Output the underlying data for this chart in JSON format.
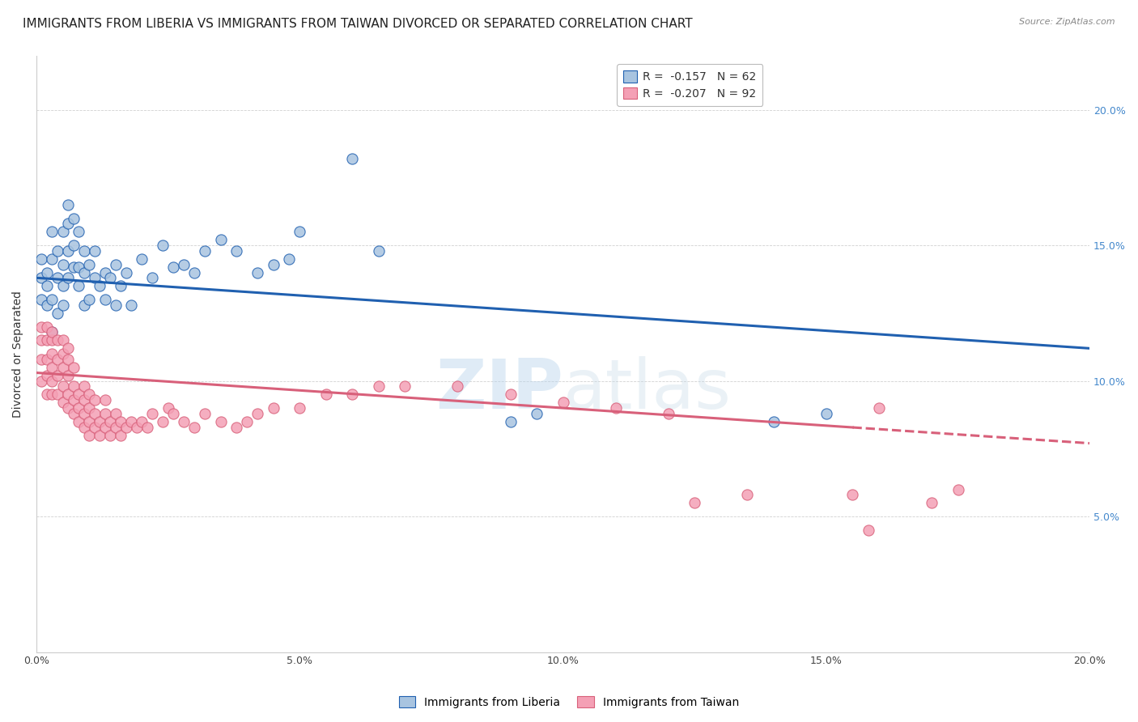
{
  "title": "IMMIGRANTS FROM LIBERIA VS IMMIGRANTS FROM TAIWAN DIVORCED OR SEPARATED CORRELATION CHART",
  "source": "Source: ZipAtlas.com",
  "ylabel": "Divorced or Separated",
  "legend_liberia": "Immigrants from Liberia",
  "legend_taiwan": "Immigrants from Taiwan",
  "r_liberia": -0.157,
  "n_liberia": 62,
  "r_taiwan": -0.207,
  "n_taiwan": 92,
  "xmin": 0.0,
  "xmax": 0.2,
  "ymin": 0.0,
  "ymax": 0.22,
  "color_liberia": "#a8c4e0",
  "color_taiwan": "#f4a0b5",
  "color_line_liberia": "#2060b0",
  "color_line_taiwan": "#d8607a",
  "watermark_zip": "ZIP",
  "watermark_atlas": "atlas",
  "title_fontsize": 11,
  "axis_label_fontsize": 10,
  "tick_fontsize": 9,
  "legend_fontsize": 10,
  "liberia_x": [
    0.001,
    0.001,
    0.001,
    0.002,
    0.002,
    0.002,
    0.003,
    0.003,
    0.003,
    0.003,
    0.004,
    0.004,
    0.004,
    0.005,
    0.005,
    0.005,
    0.005,
    0.006,
    0.006,
    0.006,
    0.006,
    0.007,
    0.007,
    0.007,
    0.008,
    0.008,
    0.008,
    0.009,
    0.009,
    0.009,
    0.01,
    0.01,
    0.011,
    0.011,
    0.012,
    0.013,
    0.013,
    0.014,
    0.015,
    0.015,
    0.016,
    0.017,
    0.018,
    0.02,
    0.022,
    0.024,
    0.026,
    0.028,
    0.03,
    0.032,
    0.035,
    0.038,
    0.042,
    0.045,
    0.048,
    0.05,
    0.06,
    0.065,
    0.09,
    0.095,
    0.14,
    0.15
  ],
  "liberia_y": [
    0.13,
    0.138,
    0.145,
    0.128,
    0.135,
    0.14,
    0.118,
    0.13,
    0.145,
    0.155,
    0.125,
    0.138,
    0.148,
    0.128,
    0.135,
    0.143,
    0.155,
    0.138,
    0.148,
    0.158,
    0.165,
    0.142,
    0.15,
    0.16,
    0.135,
    0.142,
    0.155,
    0.128,
    0.14,
    0.148,
    0.13,
    0.143,
    0.138,
    0.148,
    0.135,
    0.14,
    0.13,
    0.138,
    0.128,
    0.143,
    0.135,
    0.14,
    0.128,
    0.145,
    0.138,
    0.15,
    0.142,
    0.143,
    0.14,
    0.148,
    0.152,
    0.148,
    0.14,
    0.143,
    0.145,
    0.155,
    0.182,
    0.148,
    0.085,
    0.088,
    0.085,
    0.088
  ],
  "taiwan_x": [
    0.001,
    0.001,
    0.001,
    0.001,
    0.002,
    0.002,
    0.002,
    0.002,
    0.002,
    0.003,
    0.003,
    0.003,
    0.003,
    0.003,
    0.003,
    0.004,
    0.004,
    0.004,
    0.004,
    0.005,
    0.005,
    0.005,
    0.005,
    0.005,
    0.006,
    0.006,
    0.006,
    0.006,
    0.006,
    0.007,
    0.007,
    0.007,
    0.007,
    0.008,
    0.008,
    0.008,
    0.009,
    0.009,
    0.009,
    0.009,
    0.01,
    0.01,
    0.01,
    0.01,
    0.011,
    0.011,
    0.011,
    0.012,
    0.012,
    0.013,
    0.013,
    0.013,
    0.014,
    0.014,
    0.015,
    0.015,
    0.016,
    0.016,
    0.017,
    0.018,
    0.019,
    0.02,
    0.021,
    0.022,
    0.024,
    0.025,
    0.026,
    0.028,
    0.03,
    0.032,
    0.035,
    0.038,
    0.04,
    0.042,
    0.045,
    0.05,
    0.055,
    0.06,
    0.065,
    0.07,
    0.08,
    0.09,
    0.1,
    0.11,
    0.12,
    0.125,
    0.135,
    0.155,
    0.158,
    0.16,
    0.17,
    0.175
  ],
  "taiwan_y": [
    0.1,
    0.108,
    0.115,
    0.12,
    0.095,
    0.102,
    0.108,
    0.115,
    0.12,
    0.095,
    0.1,
    0.105,
    0.11,
    0.115,
    0.118,
    0.095,
    0.102,
    0.108,
    0.115,
    0.092,
    0.098,
    0.105,
    0.11,
    0.115,
    0.09,
    0.095,
    0.102,
    0.108,
    0.112,
    0.088,
    0.093,
    0.098,
    0.105,
    0.085,
    0.09,
    0.095,
    0.083,
    0.088,
    0.093,
    0.098,
    0.08,
    0.085,
    0.09,
    0.095,
    0.083,
    0.088,
    0.093,
    0.08,
    0.085,
    0.083,
    0.088,
    0.093,
    0.08,
    0.085,
    0.083,
    0.088,
    0.08,
    0.085,
    0.083,
    0.085,
    0.083,
    0.085,
    0.083,
    0.088,
    0.085,
    0.09,
    0.088,
    0.085,
    0.083,
    0.088,
    0.085,
    0.083,
    0.085,
    0.088,
    0.09,
    0.09,
    0.095,
    0.095,
    0.098,
    0.098,
    0.098,
    0.095,
    0.092,
    0.09,
    0.088,
    0.055,
    0.058,
    0.058,
    0.045,
    0.09,
    0.055,
    0.06
  ],
  "line_liberia_x0": 0.0,
  "line_liberia_y0": 0.138,
  "line_liberia_x1": 0.2,
  "line_liberia_y1": 0.112,
  "line_taiwan_x0": 0.0,
  "line_taiwan_y0": 0.103,
  "line_taiwan_x1": 0.2,
  "line_taiwan_y1": 0.077,
  "line_taiwan_solid_end": 0.155
}
